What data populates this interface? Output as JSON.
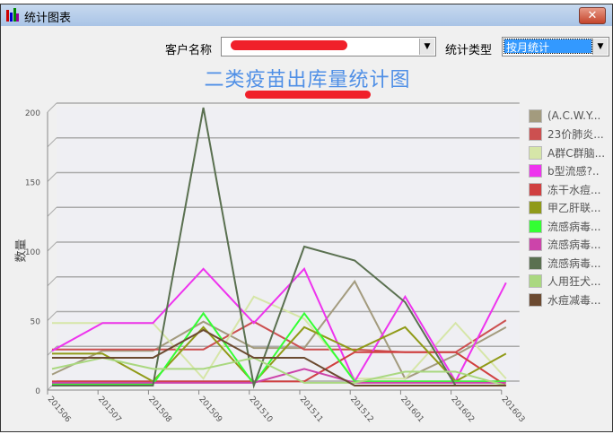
{
  "window": {
    "title": "统计图表",
    "close_icon": "close-icon"
  },
  "toolbar": {
    "customer_label": "客户名称",
    "customer_value": "",
    "type_label": "统计类型",
    "type_value": "按月统计"
  },
  "chart_data": {
    "type": "line",
    "title": "二类疫苗出库量统计图",
    "ylabel": "数量",
    "xlabel": "",
    "ylim": [
      0,
      200
    ],
    "yticks": [
      0,
      50,
      100,
      150,
      200
    ],
    "grid": true,
    "legend": "right",
    "categories": [
      "201506",
      "201507",
      "201508",
      "201509",
      "201510",
      "201511",
      "201512",
      "201601",
      "201602",
      "201603"
    ],
    "series": [
      {
        "name": "(A.C.W.Y...",
        "color": "#a39b7e",
        "values": [
          8,
          25,
          25,
          46,
          27,
          27,
          75,
          5,
          22,
          42
        ]
      },
      {
        "name": "23价肺炎...",
        "color": "#cc5050",
        "values": [
          26,
          26,
          26,
          26,
          46,
          26,
          26,
          24,
          24,
          47
        ]
      },
      {
        "name": "A群C群脑...",
        "color": "#d6e6a8",
        "values": [
          45,
          45,
          45,
          5,
          64,
          48,
          5,
          5,
          45,
          5
        ]
      },
      {
        "name": "b型流感?..",
        "color": "#ee33ee",
        "values": [
          25,
          45,
          45,
          84,
          45,
          84,
          3,
          64,
          3,
          74
        ]
      },
      {
        "name": "冻干水痘...",
        "color": "#d04040",
        "values": [
          3,
          3,
          3,
          3,
          3,
          3,
          24,
          24,
          24,
          0
        ]
      },
      {
        "name": "甲乙肝联...",
        "color": "#909a18",
        "values": [
          23,
          23,
          3,
          42,
          2,
          42,
          25,
          42,
          3,
          23
        ]
      },
      {
        "name": "流感病毒...",
        "color": "#33ff33",
        "values": [
          1,
          1,
          1,
          52,
          1,
          52,
          3,
          3,
          3,
          3
        ]
      },
      {
        "name": "流感病毒...",
        "color": "#cc44aa",
        "values": [
          2,
          2,
          2,
          2,
          2,
          12,
          2,
          2,
          2,
          2
        ]
      },
      {
        "name": "流感病毒...",
        "color": "#5a7050",
        "values": [
          0,
          0,
          0,
          200,
          0,
          100,
          90,
          60,
          0,
          0
        ]
      },
      {
        "name": "人用狂犬...",
        "color": "#aad880",
        "values": [
          12,
          20,
          12,
          12,
          20,
          2,
          2,
          10,
          10,
          0
        ]
      },
      {
        "name": "水痘减毒...",
        "color": "#6b4a30",
        "values": [
          20,
          20,
          20,
          40,
          20,
          20,
          0,
          0,
          0,
          0
        ]
      }
    ]
  }
}
